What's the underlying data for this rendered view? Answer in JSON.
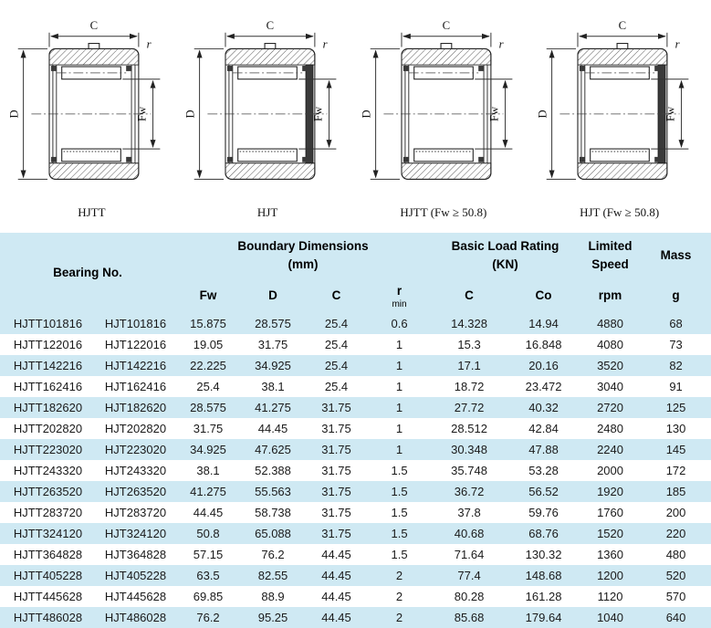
{
  "colors": {
    "table_stripe": "#cfe9f3",
    "background": "#ffffff",
    "header_text": "#000000",
    "body_text": "#1a1a1a"
  },
  "diagrams": {
    "dimension_labels": {
      "width": "C",
      "outer_diameter": "D",
      "bore": "Fw",
      "radius": "r"
    },
    "items": [
      {
        "label": "HJTT",
        "variant": "double-wall"
      },
      {
        "label": "HJT",
        "variant": "solid-wall"
      },
      {
        "label": "HJTT (Fw ≥ 50.8)",
        "variant": "double-wall"
      },
      {
        "label": "HJT (Fw ≥ 50.8)",
        "variant": "solid-wall"
      }
    ]
  },
  "table": {
    "header": {
      "bearing_no": "Bearing No.",
      "boundary_dimensions_line1": "Boundary Dimensions",
      "boundary_dimensions_line2": "(mm)",
      "basic_load_rating_line1": "Basic Load Rating",
      "basic_load_rating_line2": "(KN)",
      "limited_speed_line1": "Limited",
      "limited_speed_line2": "Speed",
      "mass": "Mass",
      "sub": {
        "fw": "Fw",
        "d": "D",
        "c": "C",
        "r": "r",
        "r_min": "min",
        "c_load": "C",
        "co": "Co",
        "rpm": "rpm",
        "g": "g"
      }
    },
    "column_keys": [
      "hjtt-no",
      "hjt-no",
      "fw",
      "d",
      "c",
      "r-min",
      "c-load",
      "co",
      "rpm",
      "mass-g"
    ],
    "rows": [
      [
        "HJTT101816",
        "HJT101816",
        "15.875",
        "28.575",
        "25.4",
        "0.6",
        "14.328",
        "14.94",
        "4880",
        "68"
      ],
      [
        "HJTT122016",
        "HJT122016",
        "19.05",
        "31.75",
        "25.4",
        "1",
        "15.3",
        "16.848",
        "4080",
        "73"
      ],
      [
        "HJTT142216",
        "HJT142216",
        "22.225",
        "34.925",
        "25.4",
        "1",
        "17.1",
        "20.16",
        "3520",
        "82"
      ],
      [
        "HJTT162416",
        "HJT162416",
        "25.4",
        "38.1",
        "25.4",
        "1",
        "18.72",
        "23.472",
        "3040",
        "91"
      ],
      [
        "HJTT182620",
        "HJT182620",
        "28.575",
        "41.275",
        "31.75",
        "1",
        "27.72",
        "40.32",
        "2720",
        "125"
      ],
      [
        "HJTT202820",
        "HJT202820",
        "31.75",
        "44.45",
        "31.75",
        "1",
        "28.512",
        "42.84",
        "2480",
        "130"
      ],
      [
        "HJTT223020",
        "HJT223020",
        "34.925",
        "47.625",
        "31.75",
        "1",
        "30.348",
        "47.88",
        "2240",
        "145"
      ],
      [
        "HJTT243320",
        "HJT243320",
        "38.1",
        "52.388",
        "31.75",
        "1.5",
        "35.748",
        "53.28",
        "2000",
        "172"
      ],
      [
        "HJTT263520",
        "HJT263520",
        "41.275",
        "55.563",
        "31.75",
        "1.5",
        "36.72",
        "56.52",
        "1920",
        "185"
      ],
      [
        "HJTT283720",
        "HJT283720",
        "44.45",
        "58.738",
        "31.75",
        "1.5",
        "37.8",
        "59.76",
        "1760",
        "200"
      ],
      [
        "HJTT324120",
        "HJT324120",
        "50.8",
        "65.088",
        "31.75",
        "1.5",
        "40.68",
        "68.76",
        "1520",
        "220"
      ],
      [
        "HJTT364828",
        "HJT364828",
        "57.15",
        "76.2",
        "44.45",
        "1.5",
        "71.64",
        "130.32",
        "1360",
        "480"
      ],
      [
        "HJTT405228",
        "HJT405228",
        "63.5",
        "82.55",
        "44.45",
        "2",
        "77.4",
        "148.68",
        "1200",
        "520"
      ],
      [
        "HJTT445628",
        "HJT445628",
        "69.85",
        "88.9",
        "44.45",
        "2",
        "80.28",
        "161.28",
        "1120",
        "570"
      ],
      [
        "HJTT486028",
        "HJT486028",
        "76.2",
        "95.25",
        "44.45",
        "2",
        "85.68",
        "179.64",
        "1040",
        "640"
      ]
    ]
  }
}
